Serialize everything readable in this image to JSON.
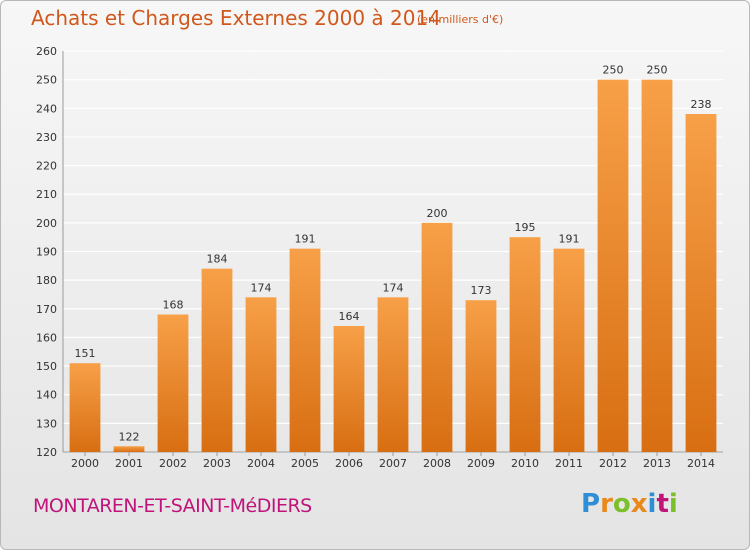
{
  "title": "Achats et Charges Externes 2000 à 2014",
  "subtitle": "(en milliers d'€)",
  "commune": "MONTAREN-ET-SAINT-MéDIERS",
  "logo": {
    "letters": [
      "P",
      "r",
      "o",
      "x",
      "i",
      "t",
      "i"
    ],
    "colors": [
      "#2e8fd6",
      "#e8891a",
      "#7bbf2a",
      "#e8891a",
      "#2e8fd6",
      "#c0147a",
      "#7bbf2a"
    ]
  },
  "colors": {
    "bar_top": "#f7a048",
    "bar_bottom": "#d86e12",
    "title": "#d1581c",
    "grid": "#ffffff"
  },
  "chart_data": {
    "type": "bar",
    "categories": [
      "2000",
      "2001",
      "2002",
      "2003",
      "2004",
      "2005",
      "2006",
      "2007",
      "2008",
      "2009",
      "2010",
      "2011",
      "2012",
      "2013",
      "2014"
    ],
    "values": [
      151,
      122,
      168,
      184,
      174,
      191,
      164,
      174,
      200,
      173,
      195,
      191,
      250,
      250,
      238
    ],
    "ylim": [
      120,
      260
    ],
    "yticks": [
      120,
      130,
      140,
      150,
      160,
      170,
      180,
      190,
      200,
      210,
      220,
      230,
      240,
      250,
      260
    ],
    "grid": true,
    "data_labels": true
  }
}
